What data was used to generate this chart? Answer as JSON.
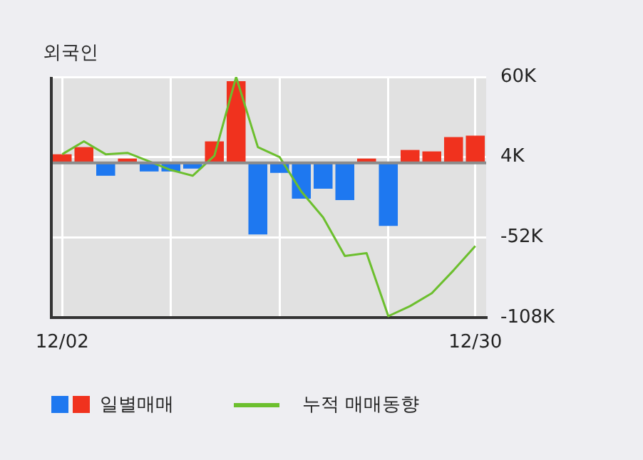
{
  "chart_data": {
    "type": "bar",
    "title": "외국인",
    "categories": [
      "12/02",
      null,
      null,
      null,
      null,
      null,
      null,
      null,
      null,
      null,
      null,
      null,
      null,
      null,
      null,
      null,
      null,
      null,
      null,
      "12/30"
    ],
    "series": [
      {
        "name": "일별매매",
        "colors": [
          "#f0321e",
          "#f0321e",
          "#1e78f0",
          "#f0321e",
          "#1e78f0",
          "#1e78f0",
          "#1e78f0",
          "#f0321e",
          "#f0321e",
          "#1e78f0",
          "#1e78f0",
          "#1e78f0",
          "#1e78f0",
          "#1e78f0",
          "#f0321e",
          "#1e78f0",
          "#f0321e",
          "#f0321e",
          "#f0321e",
          "#f0321e"
        ],
        "values": [
          6000,
          11000,
          -9000,
          3000,
          -6000,
          -6000,
          -4000,
          15000,
          57000,
          -50000,
          -7000,
          -25000,
          -18000,
          -26000,
          3000,
          -44000,
          9000,
          8000,
          18000,
          19000
        ]
      },
      {
        "name": "누적 매매동향",
        "type": "line",
        "color": "#6cbf2e",
        "values": [
          6000,
          15000,
          6000,
          7000,
          1000,
          -5000,
          -9000,
          5000,
          60000,
          11000,
          4000,
          -20000,
          -38000,
          -65000,
          -63000,
          -107000,
          -100000,
          -91000,
          -75000,
          -58000
        ]
      }
    ],
    "ylim": [
      -108000,
      60000
    ],
    "yticks": [
      {
        "value": 60000,
        "label": "60K"
      },
      {
        "value": 4000,
        "label": "4K"
      },
      {
        "value": -52000,
        "label": "-52K"
      },
      {
        "value": -108000,
        "label": "-108K"
      }
    ],
    "ref_lines": [
      {
        "axis": "y",
        "value": 0,
        "color": "#8c8c8c"
      }
    ],
    "grid": true,
    "legend": "bottom",
    "marker": "none",
    "line_style": "solid"
  }
}
